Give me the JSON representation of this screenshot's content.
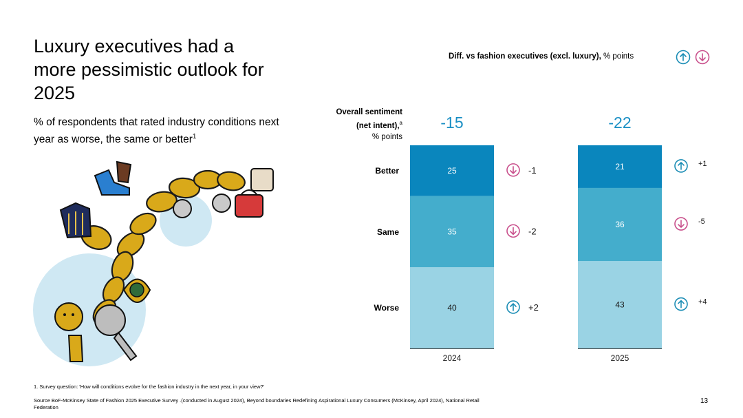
{
  "title": "Luxury executives had a more pessimistic outlook for 2025",
  "subtitle": "% of respondents that rated industry conditions next year as worse, the same or better",
  "subtitle_sup": "1",
  "legend_header": {
    "bold": "Diff. vs fashion executives (excl. luxury),",
    "normal": " % points"
  },
  "sentiment_label": {
    "line1": "Overall sentiment",
    "line2": "(net intent),",
    "line2_sup": "a",
    "line3": "% points"
  },
  "footnote": "1. Survey question: 'How will conditions evolve for the fashion industry in the next year, in your view?'",
  "source": "Source BoF-McKinsey State of Fashion 2025 Executive Survey .(conducted in August 2024), Beyond boundaries Redefining Aspirational Luxury Consumers (McKinsey, April 2024), National Retail Federation",
  "page_number": "13",
  "colors": {
    "better": "#0a86bd",
    "same": "#44adcc",
    "worse": "#9ad3e4",
    "net": "#1a8fc4",
    "up_icon": "#1b8db5",
    "down_icon": "#c9508c"
  },
  "chart_data": {
    "type": "bar",
    "stacked": true,
    "categories": [
      "2024",
      "2025"
    ],
    "series": [
      {
        "name": "Worse",
        "values": [
          40,
          43
        ]
      },
      {
        "name": "Same",
        "values": [
          35,
          36
        ]
      },
      {
        "name": "Better",
        "values": [
          25,
          21
        ]
      }
    ],
    "net_sentiment": [
      "-15",
      "-22"
    ],
    "diff_vs_fashion": {
      "2024": {
        "Better": "-1",
        "Same": "-2",
        "Worse": "+2"
      },
      "2025": {
        "Better": "+1",
        "Same": "-5",
        "Worse": "+4"
      }
    },
    "diff_direction": {
      "2024": {
        "Better": "down",
        "Same": "down",
        "Worse": "up"
      },
      "2025": {
        "Better": "up",
        "Same": "down",
        "Worse": "up"
      }
    },
    "ylim": [
      0,
      100
    ]
  }
}
